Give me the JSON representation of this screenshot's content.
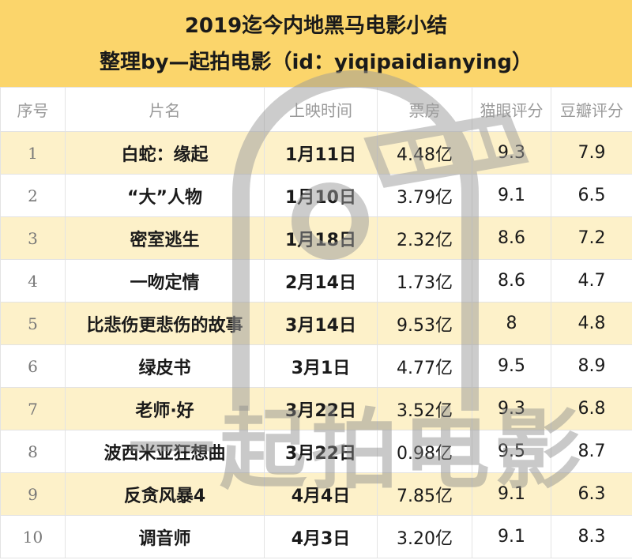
{
  "title": {
    "line1": "2019迄今内地黑马电影小结",
    "line2": "整理by—起拍电影（id：yiqipaidianying）"
  },
  "headers": [
    "序号",
    "片名",
    "上映时间",
    "票房",
    "猫眼评分",
    "豆瓣评分"
  ],
  "rows": [
    {
      "idx": "1",
      "name": "白蛇：缘起",
      "date": "1月11日",
      "box": "4.48亿",
      "maoyan": "9.3",
      "douban": "7.9"
    },
    {
      "idx": "2",
      "name": "“大”人物",
      "date": "1月10日",
      "box": "3.79亿",
      "maoyan": "9.1",
      "douban": "6.5"
    },
    {
      "idx": "3",
      "name": "密室逃生",
      "date": "1月18日",
      "box": "2.32亿",
      "maoyan": "8.6",
      "douban": "7.2"
    },
    {
      "idx": "4",
      "name": "一吻定情",
      "date": "2月14日",
      "box": "1.73亿",
      "maoyan": "8.6",
      "douban": "4.7"
    },
    {
      "idx": "5",
      "name": "比悲伤更悲伤的故事",
      "date": "3月14日",
      "box": "9.53亿",
      "maoyan": "8",
      "douban": "4.8"
    },
    {
      "idx": "6",
      "name": "绿皮书",
      "date": "3月1日",
      "box": "4.77亿",
      "maoyan": "9.5",
      "douban": "8.9"
    },
    {
      "idx": "7",
      "name": "老师·好",
      "date": "3月22日",
      "box": "3.52亿",
      "maoyan": "9.3",
      "douban": "6.8"
    },
    {
      "idx": "8",
      "name": "波西米亚狂想曲",
      "date": "3月22日",
      "box": "0.98亿",
      "maoyan": "9.5",
      "douban": "8.7"
    },
    {
      "idx": "9",
      "name": "反贪风暴4",
      "date": "4月4日",
      "box": "7.85亿",
      "maoyan": "9.1",
      "douban": "6.3"
    },
    {
      "idx": "10",
      "name": "调音师",
      "date": "4月3日",
      "box": "3.20亿",
      "maoyan": "9.1",
      "douban": "8.3"
    }
  ],
  "watermark": {
    "text": "一起拍电影",
    "icon": "film-logo-icon"
  },
  "colors": {
    "band": "#fbd56b",
    "odd_row": "#fdf1c9",
    "watermark": "#8a8a8a"
  }
}
